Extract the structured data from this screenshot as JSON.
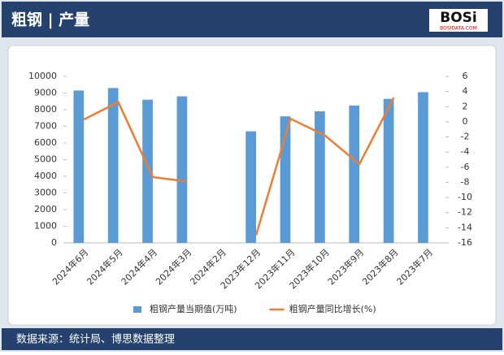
{
  "chart_data": {
    "type": "bar",
    "title": "粗钢 | 产量",
    "source": "数据来源：统计局、博思数据整理",
    "categories": [
      "2024年6月",
      "2024年5月",
      "2024年4月",
      "2024年3月",
      "2024年2月",
      "2023年12月",
      "2023年11月",
      "2023年10月",
      "2023年9月",
      "2023年8月",
      "2023年7月"
    ],
    "series": [
      {
        "name": "粗钢产量当期值(万吨)",
        "type": "bar",
        "color": "#5b9bd5",
        "values": [
          9150,
          9300,
          8600,
          8800,
          null,
          6700,
          7600,
          7900,
          8250,
          8650,
          9050
        ]
      },
      {
        "name": "粗钢产量同比增长(%)",
        "type": "line",
        "axis": "y2",
        "color": "#ed7d31",
        "values": [
          0.3,
          2.6,
          -7.3,
          -7.9,
          null,
          -15,
          0.4,
          -1.8,
          -5.6,
          3.2,
          null
        ]
      }
    ],
    "ylim": [
      0,
      10000
    ],
    "yticks": [
      0,
      1000,
      2000,
      3000,
      4000,
      5000,
      6000,
      7000,
      8000,
      9000,
      10000
    ],
    "y2lim": [
      -16,
      6
    ],
    "y2ticks": [
      -16,
      -14,
      -12,
      -10,
      -8,
      -6,
      -4,
      -2,
      0,
      2,
      4,
      6
    ],
    "legend": "bottom"
  },
  "logo": {
    "text": "BOSi",
    "subtext": "BOSIDATA.COM"
  }
}
